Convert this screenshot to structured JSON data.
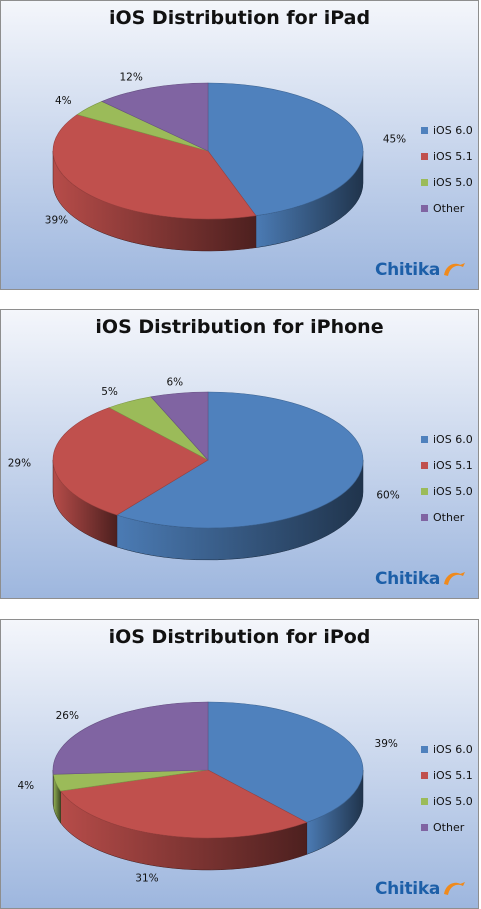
{
  "colors": {
    "ios60": "#4f81bd",
    "ios51": "#c0504d",
    "ios50": "#9bbb59",
    "other": "#8064a2",
    "background_top": "#f4f6fb",
    "background_bottom": "#9db6de"
  },
  "legend": [
    "iOS 6.0",
    "iOS 5.1",
    "iOS 5.0",
    "Other"
  ],
  "logo_text": "Chitika",
  "chart_data": [
    {
      "type": "pie",
      "title": "iOS Distribution for iPad",
      "categories": [
        "iOS 6.0",
        "iOS 5.1",
        "iOS 5.0",
        "Other"
      ],
      "values": [
        45,
        39,
        4,
        12
      ],
      "labels": [
        "45%",
        "39%",
        "4%",
        "12%"
      ],
      "legend_position": "right"
    },
    {
      "type": "pie",
      "title": "iOS Distribution for iPhone",
      "categories": [
        "iOS 6.0",
        "iOS 5.1",
        "iOS 5.0",
        "Other"
      ],
      "values": [
        60,
        29,
        5,
        6
      ],
      "labels": [
        "60%",
        "29%",
        "5%",
        "6%"
      ],
      "legend_position": "right"
    },
    {
      "type": "pie",
      "title": "iOS Distribution for iPod",
      "categories": [
        "iOS 6.0",
        "iOS 5.1",
        "iOS 5.0",
        "Other"
      ],
      "values": [
        39,
        31,
        4,
        26
      ],
      "labels": [
        "39%",
        "31%",
        "4%",
        "26%"
      ],
      "legend_position": "right"
    }
  ]
}
